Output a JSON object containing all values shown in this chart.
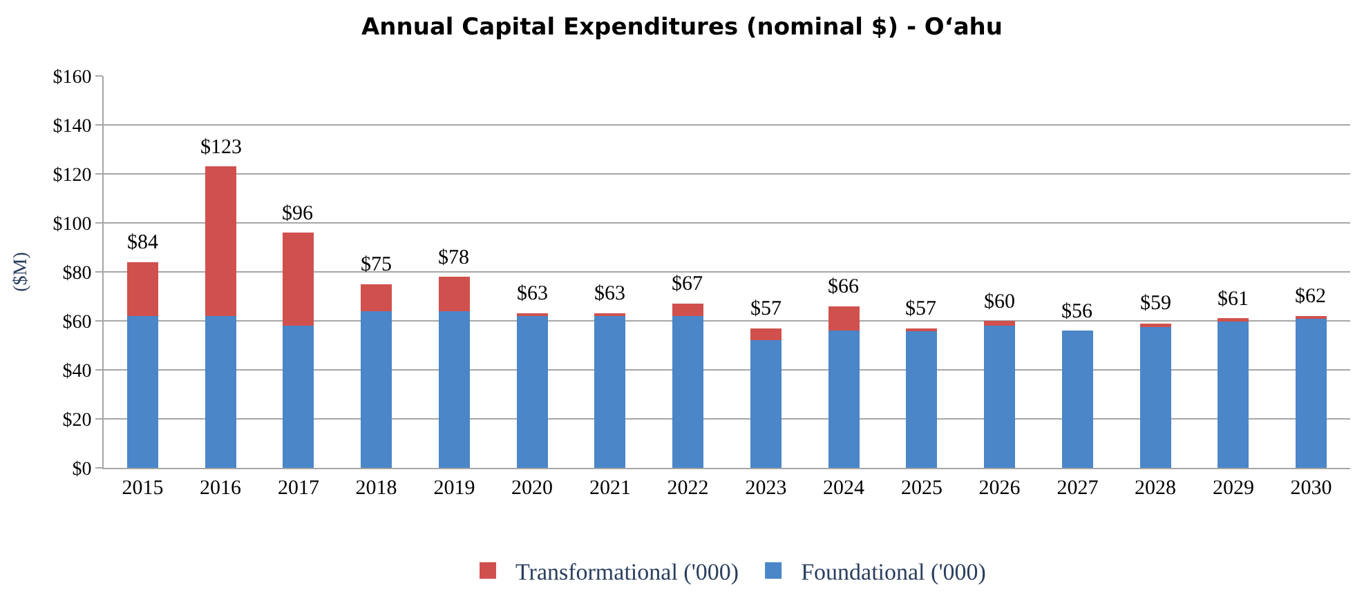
{
  "chart_data": {
    "type": "bar",
    "title": "Annual Capital Expenditures (nominal $) - O‘ahu",
    "ylabel": "($M)",
    "categories": [
      "2015",
      "2016",
      "2017",
      "2018",
      "2019",
      "2020",
      "2021",
      "2022",
      "2023",
      "2024",
      "2025",
      "2026",
      "2027",
      "2028",
      "2029",
      "2030"
    ],
    "stacked": true,
    "series": [
      {
        "name": "Foundational ('000)",
        "color": "#4a86c8",
        "values": [
          62,
          62,
          58,
          64,
          64,
          62,
          62,
          62,
          52,
          56,
          56,
          58,
          56,
          58,
          60,
          61
        ]
      },
      {
        "name": "Transformational ('000)",
        "color": "#d0504d",
        "values": [
          22,
          61,
          38,
          11,
          14,
          1,
          1,
          5,
          5,
          10,
          1,
          2,
          0,
          1,
          1,
          1
        ]
      }
    ],
    "totals": [
      "$84",
      "$123",
      "$96",
      "$75",
      "$78",
      "$63",
      "$63",
      "$67",
      "$57",
      "$66",
      "$57",
      "$60",
      "$56",
      "$59",
      "$61",
      "$62"
    ],
    "ylim": [
      0,
      160
    ],
    "yticks": [
      {
        "value": 0,
        "label": "$0"
      },
      {
        "value": 20,
        "label": "$20"
      },
      {
        "value": 40,
        "label": "$40"
      },
      {
        "value": 60,
        "label": "$60"
      },
      {
        "value": 80,
        "label": "$80"
      },
      {
        "value": 100,
        "label": "$100"
      },
      {
        "value": 120,
        "label": "$120"
      },
      {
        "value": 140,
        "label": "$140"
      },
      {
        "value": 160,
        "label": "$160"
      }
    ],
    "grid": "y",
    "legend": "bottom"
  }
}
